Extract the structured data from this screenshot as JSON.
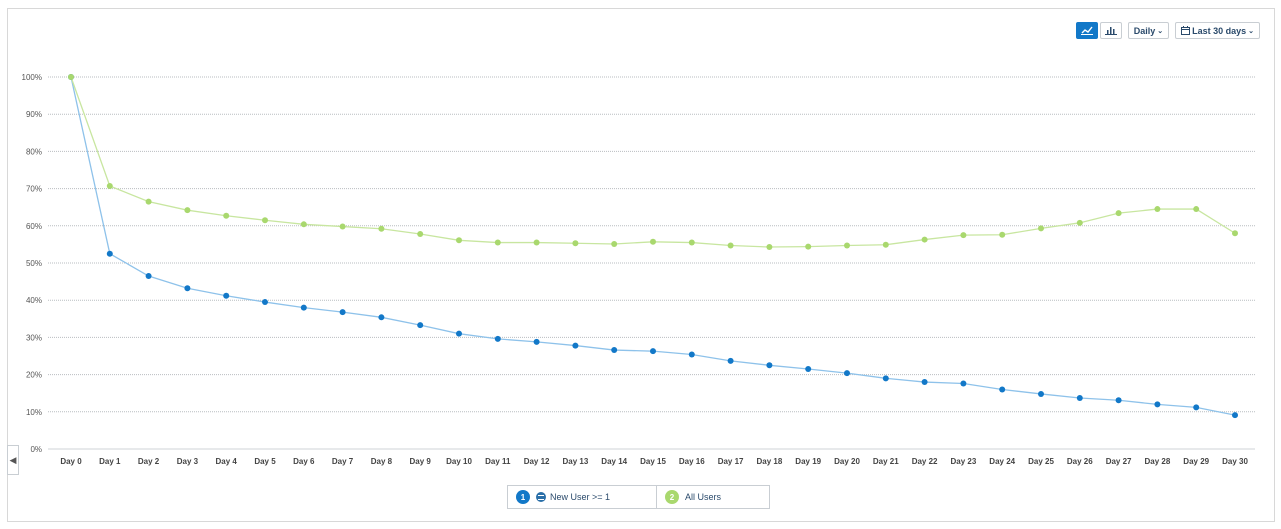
{
  "controls": {
    "line_icon": "line-chart-icon",
    "bar_icon": "bar-chart-icon",
    "interval_label": "Daily",
    "range_label": "Last 30 days",
    "active_color": "#1278c8"
  },
  "legend": {
    "items": [
      {
        "index": "1",
        "label": "New User >= 1",
        "color": "#1278c8"
      },
      {
        "index": "2",
        "label": "All Users",
        "color": "#a9d86e"
      }
    ]
  },
  "chart_data": {
    "type": "line",
    "categories": [
      "Day 0",
      "Day 1",
      "Day 2",
      "Day 3",
      "Day 4",
      "Day 5",
      "Day 6",
      "Day 7",
      "Day 8",
      "Day 9",
      "Day 10",
      "Day 11",
      "Day 12",
      "Day 13",
      "Day 14",
      "Day 15",
      "Day 16",
      "Day 17",
      "Day 18",
      "Day 19",
      "Day 20",
      "Day 21",
      "Day 22",
      "Day 23",
      "Day 24",
      "Day 25",
      "Day 26",
      "Day 27",
      "Day 28",
      "Day 29",
      "Day 30"
    ],
    "series": [
      {
        "name": "New User >= 1",
        "color": "#1278c8",
        "line_color": "#8ec2ea",
        "values": [
          100,
          52.5,
          46.5,
          43.2,
          41.2,
          39.5,
          38,
          36.8,
          35.4,
          33.3,
          31,
          29.6,
          28.8,
          27.8,
          26.6,
          26.3,
          25.4,
          23.7,
          22.5,
          21.5,
          20.4,
          19,
          18,
          17.6,
          16,
          14.8,
          13.7,
          13.1,
          12,
          11.2,
          9.1
        ]
      },
      {
        "name": "All Users",
        "color": "#a9d86e",
        "line_color": "#c8e6a0",
        "values": [
          100,
          70.7,
          66.5,
          64.2,
          62.7,
          61.5,
          60.4,
          59.8,
          59.2,
          57.8,
          56.1,
          55.5,
          55.5,
          55.3,
          55.1,
          55.7,
          55.5,
          54.7,
          54.3,
          54.4,
          54.7,
          54.9,
          56.3,
          57.5,
          57.6,
          59.3,
          60.8,
          63.4,
          64.5,
          64.5,
          58
        ]
      }
    ],
    "yticks": [
      "0%",
      "10%",
      "20%",
      "30%",
      "40%",
      "50%",
      "60%",
      "70%",
      "80%",
      "90%",
      "100%"
    ],
    "ylim": [
      0,
      100
    ],
    "grid": true
  }
}
